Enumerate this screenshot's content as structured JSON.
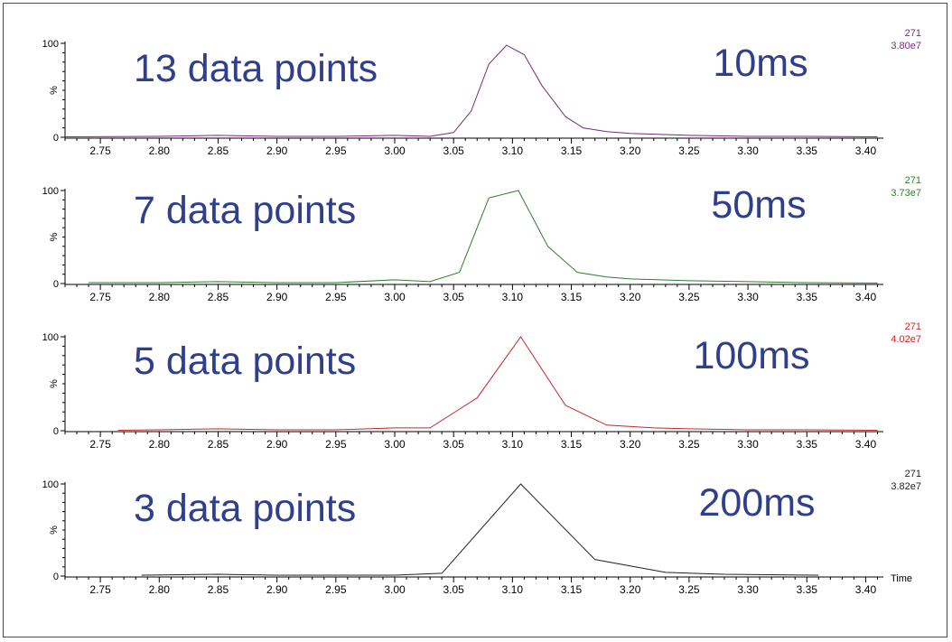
{
  "chart_data": [
    {
      "type": "line",
      "annotation_left": "13 data points",
      "annotation_right": "10ms",
      "ylabel": "%",
      "y_ticks": [
        "100",
        "0"
      ],
      "ylim": [
        0,
        100
      ],
      "xlim": [
        2.72,
        3.415
      ],
      "x_ticks": [
        "2.75",
        "2.80",
        "2.85",
        "2.90",
        "2.95",
        "3.00",
        "3.05",
        "3.10",
        "3.15",
        "3.20",
        "3.25",
        "3.30",
        "3.35",
        "3.40"
      ],
      "mass": "271",
      "intensity": "3.80e7",
      "color": "#7b2a7b",
      "x": [
        2.72,
        2.8,
        2.85,
        2.9,
        2.95,
        3.0,
        3.03,
        3.05,
        3.065,
        3.08,
        3.095,
        3.11,
        3.125,
        3.145,
        3.16,
        3.18,
        3.2,
        3.25,
        3.3,
        3.35,
        3.41
      ],
      "values": [
        0.5,
        1,
        2,
        1,
        1,
        2,
        1,
        5,
        28,
        78,
        98,
        88,
        55,
        22,
        10,
        6,
        4,
        2,
        1,
        1,
        0.5
      ]
    },
    {
      "type": "line",
      "annotation_left": "7 data points",
      "annotation_right": "50ms",
      "ylabel": "%",
      "y_ticks": [
        "100",
        "0"
      ],
      "ylim": [
        0,
        100
      ],
      "xlim": [
        2.72,
        3.415
      ],
      "x_ticks": [
        "2.75",
        "2.80",
        "2.85",
        "2.90",
        "2.95",
        "3.00",
        "3.05",
        "3.10",
        "3.15",
        "3.20",
        "3.25",
        "3.30",
        "3.35",
        "3.40"
      ],
      "mass": "271",
      "intensity": "3.73e7",
      "color": "#2e7d32",
      "x": [
        2.74,
        2.8,
        2.85,
        2.9,
        2.95,
        3.0,
        3.03,
        3.055,
        3.08,
        3.105,
        3.13,
        3.155,
        3.18,
        3.2,
        3.25,
        3.3,
        3.35,
        3.41
      ],
      "values": [
        1,
        1,
        2,
        1,
        1,
        4,
        2,
        12,
        92,
        100,
        40,
        12,
        7,
        5,
        3,
        2,
        1,
        0.5
      ]
    },
    {
      "type": "line",
      "annotation_left": "5 data points",
      "annotation_right": "100ms",
      "ylabel": "%",
      "y_ticks": [
        "100",
        "0"
      ],
      "ylim": [
        0,
        100
      ],
      "xlim": [
        2.72,
        3.415
      ],
      "x_ticks": [
        "2.75",
        "2.80",
        "2.85",
        "2.90",
        "2.95",
        "3.00",
        "3.05",
        "3.10",
        "3.15",
        "3.20",
        "3.25",
        "3.30",
        "3.35",
        "3.40"
      ],
      "mass": "271",
      "intensity": "4.02e7",
      "color": "#c62828",
      "x": [
        2.765,
        2.8,
        2.85,
        2.9,
        2.95,
        3.0,
        3.03,
        3.07,
        3.107,
        3.145,
        3.18,
        3.22,
        3.25,
        3.3,
        3.35,
        3.41
      ],
      "values": [
        0.5,
        1,
        2,
        1,
        1,
        3,
        3,
        35,
        100,
        27,
        6,
        3,
        2,
        1,
        1,
        0.5
      ]
    },
    {
      "type": "line",
      "annotation_left": "3 data points",
      "annotation_right": "200ms",
      "ylabel": "%",
      "y_ticks": [
        "100",
        "0"
      ],
      "ylim": [
        0,
        100
      ],
      "xlim": [
        2.72,
        3.415
      ],
      "x_ticks": [
        "2.75",
        "2.80",
        "2.85",
        "2.90",
        "2.95",
        "3.00",
        "3.05",
        "3.10",
        "3.15",
        "3.20",
        "3.25",
        "3.30",
        "3.35",
        "3.40"
      ],
      "xlabel": "Time",
      "mass": "271",
      "intensity": "3.82e7",
      "color": "#222222",
      "x": [
        2.785,
        2.85,
        2.9,
        2.95,
        3.0,
        3.04,
        3.107,
        3.17,
        3.23,
        3.28,
        3.36
      ],
      "values": [
        1,
        2,
        1,
        1,
        1,
        3,
        100,
        18,
        4,
        2,
        1
      ]
    }
  ]
}
